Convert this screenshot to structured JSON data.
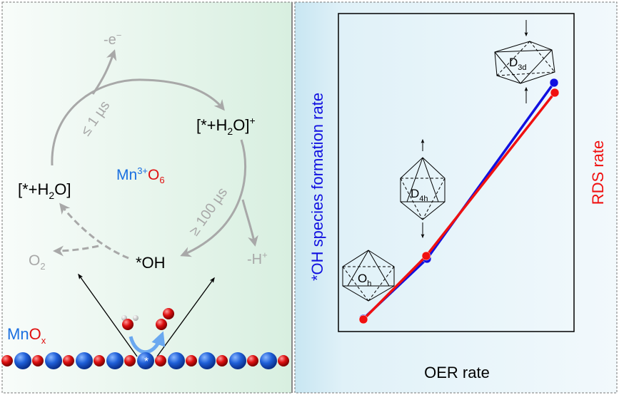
{
  "left_panel": {
    "cycle": {
      "state_1": {
        "pre": "[*+H",
        "sub": "2",
        "post": "O]"
      },
      "state_2": {
        "pre": "[*+H",
        "sub": "2",
        "post": "O]",
        "sup": "+"
      },
      "state_3": "*OH",
      "product_o2": {
        "main": "O",
        "sub": "2"
      },
      "electron_loss": {
        "main": "-e",
        "sup": "−"
      },
      "proton_loss": {
        "main": "-H",
        "sup": "+"
      },
      "time_fast": "≤ 1 µs",
      "time_slow": "≥ 100 µs"
    },
    "center_label": {
      "mn": "Mn",
      "sup": "3+",
      "o": "O",
      "sub": "6"
    },
    "surface_label": {
      "mn": "Mn",
      "o": "O",
      "sub": "x"
    },
    "active_site": "*"
  },
  "right_panel": {
    "xlabel": "OER rate",
    "ylabel_left": "*OH species formation rate",
    "ylabel_right": "RDS rate",
    "structures": [
      {
        "main": "O",
        "sub": "h"
      },
      {
        "main": "D",
        "sub": "4h"
      },
      {
        "main": "D",
        "sub": "3d"
      }
    ],
    "series_colors": {
      "oh_formation": "#1010e0",
      "rds": "#f01010"
    }
  },
  "colors": {
    "mn": "#1a6fe0",
    "o": "#e01010",
    "gray": "#a8a8a8"
  }
}
